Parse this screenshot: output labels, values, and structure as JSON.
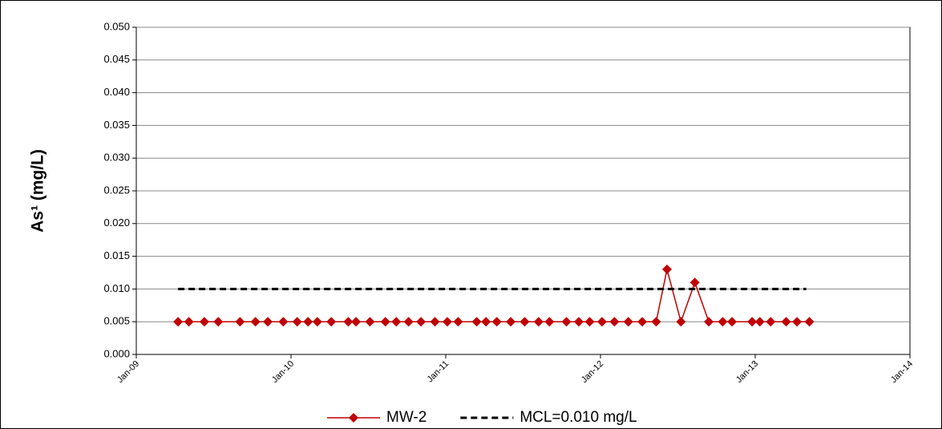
{
  "chart_data": {
    "type": "line",
    "y_label": "As¹ (mg/L)",
    "xlim": [
      2009,
      2014
    ],
    "xticks": [
      {
        "value": 2009,
        "label": "Jan-09"
      },
      {
        "value": 2010,
        "label": "Jan-10"
      },
      {
        "value": 2011,
        "label": "Jan-11"
      },
      {
        "value": 2012,
        "label": "Jan-12"
      },
      {
        "value": 2013,
        "label": "Jan-13"
      },
      {
        "value": 2014,
        "label": "Jan-14"
      }
    ],
    "ylim": [
      0,
      0.05
    ],
    "yticks": [
      {
        "value": 0,
        "label": "0.000"
      },
      {
        "value": 0.005,
        "label": "0.005"
      },
      {
        "value": 0.01,
        "label": "0.010"
      },
      {
        "value": 0.015,
        "label": "0.015"
      },
      {
        "value": 0.02,
        "label": "0.020"
      },
      {
        "value": 0.025,
        "label": "0.025"
      },
      {
        "value": 0.03,
        "label": "0.030"
      },
      {
        "value": 0.035,
        "label": "0.035"
      },
      {
        "value": 0.04,
        "label": "0.040"
      },
      {
        "value": 0.045,
        "label": "0.045"
      },
      {
        "value": 0.05,
        "label": "0.050"
      }
    ],
    "grid": true,
    "legend": "bottom",
    "series": [
      {
        "name": "MW-2",
        "color": "#c00000",
        "marker": "diamond",
        "line_style": "solid",
        "x": [
          2009.27,
          2009.34,
          2009.44,
          2009.53,
          2009.67,
          2009.77,
          2009.85,
          2009.95,
          2010.04,
          2010.11,
          2010.17,
          2010.26,
          2010.37,
          2010.42,
          2010.51,
          2010.61,
          2010.68,
          2010.76,
          2010.84,
          2010.93,
          2011.01,
          2011.08,
          2011.2,
          2011.26,
          2011.33,
          2011.42,
          2011.51,
          2011.6,
          2011.67,
          2011.78,
          2011.86,
          2011.93,
          2012.01,
          2012.09,
          2012.18,
          2012.27,
          2012.36,
          2012.43,
          2012.52,
          2012.61,
          2012.7,
          2012.79,
          2012.85,
          2012.98,
          2013.03,
          2013.1,
          2013.2,
          2013.27,
          2013.35
        ],
        "values": [
          0.005,
          0.005,
          0.005,
          0.005,
          0.005,
          0.005,
          0.005,
          0.005,
          0.005,
          0.005,
          0.005,
          0.005,
          0.005,
          0.005,
          0.005,
          0.005,
          0.005,
          0.005,
          0.005,
          0.005,
          0.005,
          0.005,
          0.005,
          0.005,
          0.005,
          0.005,
          0.005,
          0.005,
          0.005,
          0.005,
          0.005,
          0.005,
          0.005,
          0.005,
          0.005,
          0.005,
          0.005,
          0.013,
          0.005,
          0.011,
          0.005,
          0.005,
          0.005,
          0.005,
          0.005,
          0.005,
          0.005,
          0.005,
          0.005
        ]
      },
      {
        "name": "MCL=0.010 mg/L",
        "color": "#000000",
        "marker": "none",
        "line_style": "dashed",
        "x": [
          2009.27,
          2013.33
        ],
        "values": [
          0.01,
          0.01
        ]
      }
    ]
  }
}
